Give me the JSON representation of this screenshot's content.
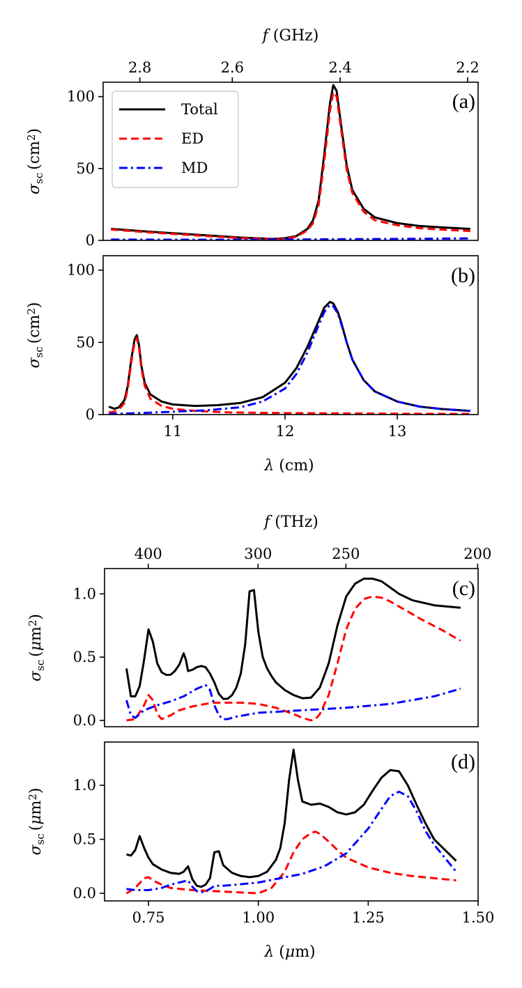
{
  "chart_data": [
    {
      "panel": "(a)",
      "type": "line",
      "top_axis": {
        "label_symbol": "f",
        "label_unit": "(GHz)",
        "ticks": [
          "2.8",
          "2.6",
          "2.4",
          "2.2"
        ],
        "tick_values": [
          2.8,
          2.6,
          2.4,
          2.2
        ]
      },
      "xlabel": "",
      "xlim": [
        10.38,
        13.72
      ],
      "ylabel": "σsc (cm2)",
      "ylim": [
        0,
        110
      ],
      "yticks": [
        "0",
        "50",
        "100"
      ],
      "ytick_values": [
        0,
        50,
        100
      ],
      "series": [
        {
          "name": "Total",
          "style": "solid",
          "color": "#000000",
          "x": [
            10.45,
            10.8,
            11.2,
            11.6,
            11.9,
            12.0,
            12.1,
            12.2,
            12.25,
            12.3,
            12.35,
            12.4,
            12.43,
            12.46,
            12.5,
            12.55,
            12.6,
            12.7,
            12.8,
            13.0,
            13.2,
            13.4,
            13.65
          ],
          "y": [
            8,
            6,
            4,
            2,
            1,
            1.5,
            3,
            8,
            14,
            28,
            60,
            95,
            108,
            104,
            80,
            52,
            35,
            22,
            16,
            12,
            10,
            9,
            8
          ]
        },
        {
          "name": "ED",
          "style": "dashed",
          "color": "#ff0000",
          "x": [
            10.45,
            10.8,
            11.2,
            11.6,
            11.9,
            12.0,
            12.1,
            12.2,
            12.25,
            12.3,
            12.35,
            12.4,
            12.43,
            12.46,
            12.5,
            12.55,
            12.6,
            12.7,
            12.8,
            13.0,
            13.2,
            13.4,
            13.65
          ],
          "y": [
            7.5,
            5.5,
            3.5,
            1.6,
            0.8,
            1,
            2.5,
            7,
            12,
            25,
            55,
            90,
            103,
            100,
            77,
            49,
            33,
            20,
            14,
            10.5,
            8.5,
            7.5,
            6.5
          ]
        },
        {
          "name": "MD",
          "style": "dashdot",
          "color": "#0000ff",
          "x": [
            10.45,
            11.0,
            11.5,
            12.0,
            12.5,
            13.0,
            13.65
          ],
          "y": [
            0.6,
            0.5,
            0.5,
            0.6,
            0.8,
            1.0,
            1.4
          ]
        }
      ],
      "legend": [
        "Total",
        "ED",
        "MD"
      ],
      "legend_position": "top-left"
    },
    {
      "panel": "(b)",
      "type": "line",
      "xlabel": "λ (cm)",
      "xlim": [
        10.38,
        13.72
      ],
      "xticks": [
        "11",
        "12",
        "13"
      ],
      "xtick_values": [
        11,
        12,
        13
      ],
      "ylabel": "σsc (cm2)",
      "ylim": [
        0,
        110
      ],
      "yticks": [
        "0",
        "50",
        "100"
      ],
      "ytick_values": [
        0,
        50,
        100
      ],
      "series": [
        {
          "name": "Total",
          "style": "solid",
          "color": "#000000",
          "x": [
            10.43,
            10.48,
            10.52,
            10.57,
            10.6,
            10.63,
            10.66,
            10.68,
            10.7,
            10.72,
            10.75,
            10.8,
            10.9,
            11.0,
            11.2,
            11.4,
            11.6,
            11.8,
            12.0,
            12.1,
            12.2,
            12.3,
            12.35,
            12.4,
            12.43,
            12.47,
            12.5,
            12.55,
            12.6,
            12.7,
            12.8,
            13.0,
            13.2,
            13.4,
            13.65
          ],
          "y": [
            5.5,
            4,
            5,
            10,
            20,
            38,
            52,
            55,
            48,
            34,
            22,
            14,
            9,
            7,
            6,
            6.5,
            8,
            12,
            22,
            32,
            47,
            65,
            74,
            78,
            77,
            71,
            64,
            50,
            38,
            24,
            16,
            9,
            5.5,
            3.8,
            2.5
          ]
        },
        {
          "name": "ED",
          "style": "dashed",
          "color": "#ff0000",
          "x": [
            10.43,
            10.48,
            10.52,
            10.57,
            10.6,
            10.63,
            10.66,
            10.68,
            10.7,
            10.72,
            10.75,
            10.8,
            10.9,
            11.0,
            11.2,
            11.5,
            12.0,
            12.5,
            13.0,
            13.4,
            13.65
          ],
          "y": [
            1.5,
            2,
            3.5,
            8,
            18,
            36,
            50,
            53,
            46,
            32,
            20,
            11,
            6,
            4,
            2.5,
            1.5,
            1.0,
            0.8,
            0.6,
            0.5,
            0.5
          ]
        },
        {
          "name": "MD",
          "style": "dashdot",
          "color": "#0000ff",
          "x": [
            10.43,
            10.7,
            11.0,
            11.3,
            11.6,
            11.8,
            12.0,
            12.1,
            12.2,
            12.3,
            12.35,
            12.4,
            12.43,
            12.47,
            12.5,
            12.55,
            12.6,
            12.7,
            12.8,
            13.0,
            13.2,
            13.4,
            13.65
          ],
          "y": [
            0.5,
            1,
            2,
            3,
            5,
            9,
            18,
            28,
            43,
            62,
            71,
            76,
            75,
            70,
            63,
            50,
            38,
            24,
            16,
            9,
            5.5,
            3.8,
            2.5
          ]
        }
      ]
    },
    {
      "panel": "(c)",
      "type": "line",
      "top_axis": {
        "label_symbol": "f",
        "label_unit": "(THz)",
        "ticks": [
          "400",
          "300",
          "250",
          "200"
        ],
        "tick_values": [
          400,
          300,
          250,
          200
        ]
      },
      "xlabel": "",
      "xlim": [
        0.65,
        1.5
      ],
      "ylabel": "σsc (μm2)",
      "ylim": [
        -0.05,
        1.2
      ],
      "yticks": [
        "0.0",
        "0.5",
        "1.0"
      ],
      "ytick_values": [
        0,
        0.5,
        1.0
      ],
      "series": [
        {
          "name": "Total",
          "style": "solid",
          "color": "#000000",
          "x": [
            0.7,
            0.71,
            0.72,
            0.73,
            0.74,
            0.75,
            0.76,
            0.77,
            0.78,
            0.79,
            0.8,
            0.81,
            0.82,
            0.83,
            0.835,
            0.84,
            0.85,
            0.86,
            0.87,
            0.88,
            0.89,
            0.9,
            0.91,
            0.92,
            0.93,
            0.94,
            0.95,
            0.96,
            0.97,
            0.98,
            0.99,
            1.0,
            1.01,
            1.02,
            1.03,
            1.04,
            1.06,
            1.08,
            1.1,
            1.12,
            1.14,
            1.16,
            1.18,
            1.2,
            1.22,
            1.24,
            1.26,
            1.28,
            1.3,
            1.32,
            1.35,
            1.4,
            1.46
          ],
          "y": [
            0.41,
            0.19,
            0.19,
            0.27,
            0.48,
            0.72,
            0.62,
            0.45,
            0.38,
            0.36,
            0.36,
            0.39,
            0.44,
            0.53,
            0.48,
            0.39,
            0.4,
            0.42,
            0.43,
            0.42,
            0.37,
            0.3,
            0.21,
            0.17,
            0.17,
            0.2,
            0.26,
            0.37,
            0.6,
            1.02,
            1.03,
            0.7,
            0.5,
            0.41,
            0.35,
            0.3,
            0.24,
            0.2,
            0.175,
            0.18,
            0.26,
            0.45,
            0.75,
            0.98,
            1.08,
            1.12,
            1.12,
            1.1,
            1.05,
            1.0,
            0.95,
            0.91,
            0.89
          ]
        },
        {
          "name": "ED",
          "style": "dashed",
          "color": "#ff0000",
          "x": [
            0.7,
            0.72,
            0.74,
            0.75,
            0.76,
            0.77,
            0.78,
            0.8,
            0.82,
            0.85,
            0.88,
            0.9,
            0.93,
            0.96,
            1.0,
            1.04,
            1.08,
            1.1,
            1.12,
            1.13,
            1.14,
            1.16,
            1.18,
            1.2,
            1.22,
            1.24,
            1.26,
            1.28,
            1.3,
            1.33,
            1.37,
            1.42,
            1.46
          ],
          "y": [
            0.0,
            0.01,
            0.12,
            0.2,
            0.16,
            0.05,
            0.01,
            0.04,
            0.08,
            0.11,
            0.13,
            0.14,
            0.14,
            0.14,
            0.13,
            0.1,
            0.05,
            0.02,
            0.0,
            0.01,
            0.05,
            0.2,
            0.45,
            0.72,
            0.88,
            0.96,
            0.98,
            0.97,
            0.94,
            0.88,
            0.8,
            0.71,
            0.63
          ]
        },
        {
          "name": "MD",
          "style": "dashdot",
          "color": "#0000ff",
          "x": [
            0.7,
            0.71,
            0.72,
            0.74,
            0.77,
            0.8,
            0.83,
            0.86,
            0.88,
            0.89,
            0.9,
            0.91,
            0.92,
            0.93,
            0.95,
            1.0,
            1.05,
            1.1,
            1.2,
            1.3,
            1.4,
            1.46
          ],
          "y": [
            0.16,
            0.04,
            0.02,
            0.08,
            0.12,
            0.15,
            0.19,
            0.25,
            0.28,
            0.24,
            0.12,
            0.04,
            0.01,
            0.01,
            0.03,
            0.06,
            0.07,
            0.08,
            0.1,
            0.13,
            0.19,
            0.25
          ]
        }
      ]
    },
    {
      "panel": "(d)",
      "type": "line",
      "xlabel": "λ (μm)",
      "xlim": [
        0.65,
        1.5
      ],
      "xticks": [
        "0.75",
        "1.00",
        "1.25",
        "1.50"
      ],
      "xtick_values": [
        0.75,
        1.0,
        1.25,
        1.5
      ],
      "ylabel": "σsc (μm2)",
      "ylim": [
        -0.07,
        1.4
      ],
      "yticks": [
        "0.0",
        "0.5",
        "1.0"
      ],
      "ytick_values": [
        0,
        0.5,
        1.0
      ],
      "series": [
        {
          "name": "Total",
          "style": "solid",
          "color": "#000000",
          "x": [
            0.7,
            0.71,
            0.72,
            0.73,
            0.74,
            0.75,
            0.76,
            0.78,
            0.8,
            0.82,
            0.83,
            0.84,
            0.85,
            0.86,
            0.87,
            0.88,
            0.89,
            0.9,
            0.91,
            0.92,
            0.94,
            0.96,
            0.98,
            1.0,
            1.02,
            1.04,
            1.05,
            1.06,
            1.07,
            1.08,
            1.09,
            1.1,
            1.12,
            1.14,
            1.16,
            1.18,
            1.2,
            1.22,
            1.24,
            1.26,
            1.28,
            1.3,
            1.32,
            1.34,
            1.36,
            1.38,
            1.4,
            1.45
          ],
          "y": [
            0.36,
            0.35,
            0.4,
            0.53,
            0.42,
            0.33,
            0.27,
            0.22,
            0.19,
            0.18,
            0.2,
            0.25,
            0.13,
            0.07,
            0.06,
            0.08,
            0.14,
            0.38,
            0.39,
            0.26,
            0.19,
            0.16,
            0.15,
            0.16,
            0.2,
            0.31,
            0.42,
            0.65,
            1.05,
            1.33,
            1.05,
            0.85,
            0.82,
            0.83,
            0.8,
            0.75,
            0.73,
            0.75,
            0.82,
            0.95,
            1.07,
            1.14,
            1.13,
            1.0,
            0.82,
            0.65,
            0.5,
            0.3
          ]
        },
        {
          "name": "ED",
          "style": "dashed",
          "color": "#ff0000",
          "x": [
            0.7,
            0.72,
            0.74,
            0.75,
            0.76,
            0.78,
            0.8,
            0.85,
            0.9,
            0.95,
            1.0,
            1.03,
            1.06,
            1.08,
            1.1,
            1.12,
            1.13,
            1.14,
            1.16,
            1.18,
            1.2,
            1.25,
            1.3,
            1.35,
            1.4,
            1.45
          ],
          "y": [
            0.0,
            0.05,
            0.14,
            0.15,
            0.12,
            0.08,
            0.05,
            0.03,
            0.02,
            0.01,
            0.0,
            0.05,
            0.2,
            0.38,
            0.5,
            0.56,
            0.57,
            0.55,
            0.48,
            0.4,
            0.33,
            0.24,
            0.19,
            0.16,
            0.14,
            0.12
          ]
        },
        {
          "name": "MD",
          "style": "dashdot",
          "color": "#0000ff",
          "x": [
            0.7,
            0.72,
            0.75,
            0.78,
            0.8,
            0.83,
            0.84,
            0.85,
            0.86,
            0.87,
            0.88,
            0.89,
            0.9,
            0.92,
            0.95,
            1.0,
            1.05,
            1.1,
            1.15,
            1.2,
            1.25,
            1.28,
            1.3,
            1.32,
            1.34,
            1.36,
            1.38,
            1.4,
            1.45
          ],
          "y": [
            0.04,
            0.03,
            0.03,
            0.05,
            0.08,
            0.11,
            0.12,
            0.06,
            0.02,
            0.01,
            0.02,
            0.04,
            0.07,
            0.07,
            0.08,
            0.1,
            0.14,
            0.18,
            0.25,
            0.37,
            0.6,
            0.78,
            0.9,
            0.94,
            0.9,
            0.76,
            0.58,
            0.45,
            0.2
          ]
        }
      ]
    }
  ]
}
